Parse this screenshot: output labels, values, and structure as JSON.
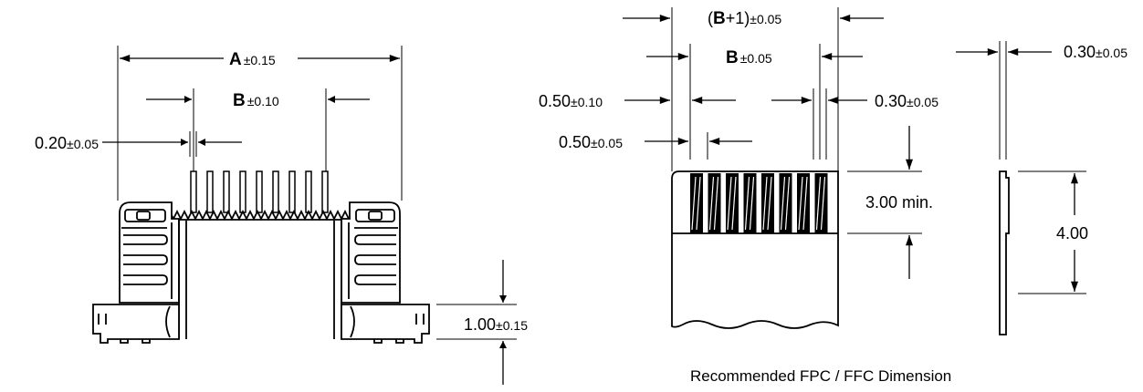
{
  "left_view": {
    "dim_a": {
      "letter": "A",
      "tol": "±0.15"
    },
    "dim_b": {
      "letter": "B",
      "tol": "±0.10"
    },
    "pitch": {
      "value": "0.20",
      "tol": "±0.05"
    },
    "height": {
      "value": "1.00",
      "tol": "±0.15"
    }
  },
  "fpc_view": {
    "b_plus": {
      "open": "(",
      "letter": "B",
      "rest": "+1)",
      "tol": "±0.05"
    },
    "b": {
      "letter": "B",
      "tol": "±0.05"
    },
    "edge": {
      "value": "0.50",
      "tol": "±0.10"
    },
    "finger": {
      "value": "0.30",
      "tol": "±0.05"
    },
    "gap": {
      "value": "0.50",
      "tol": "±0.05"
    },
    "min_len": "3.00 min.",
    "caption": "Recommended FPC / FFC Dimension"
  },
  "side_view": {
    "thickness": {
      "value": "0.30",
      "tol": "±0.05"
    },
    "length": "4.00"
  }
}
